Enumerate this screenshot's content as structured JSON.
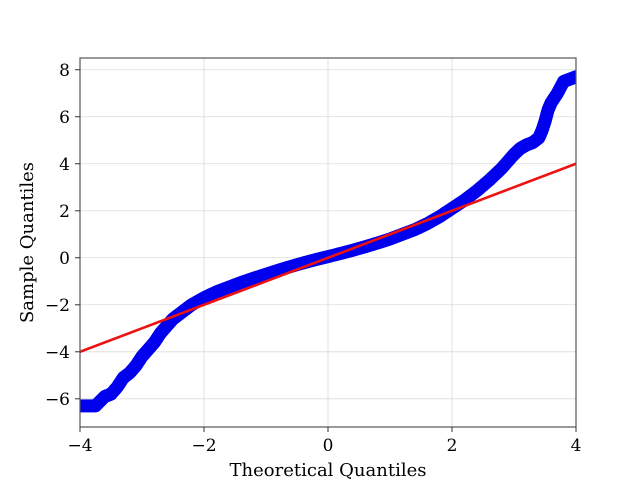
{
  "chart_data": {
    "type": "scatter",
    "xlabel": "Theoretical Quantiles",
    "ylabel": "Sample Quantiles",
    "xlim": [
      -4,
      4
    ],
    "ylim": [
      -7.2,
      8.5
    ],
    "grid": true,
    "x_ticks": [
      -4,
      -2,
      0,
      2,
      4
    ],
    "x_tick_labels": [
      "−4",
      "−2",
      "0",
      "2",
      "4"
    ],
    "y_ticks": [
      -6,
      -4,
      -2,
      0,
      2,
      4,
      6,
      8
    ],
    "y_tick_labels": [
      "−6",
      "−4",
      "−2",
      "0",
      "2",
      "4",
      "6",
      "8"
    ],
    "series": [
      {
        "type": "scatter",
        "color": "#0000ee",
        "x": [
          -4.0,
          -3.75,
          -3.6,
          -3.5,
          -3.4,
          -3.3,
          -3.2,
          -3.1,
          -3.0,
          -2.9,
          -2.8,
          -2.7,
          -2.6,
          -2.5,
          -2.4,
          -2.3,
          -2.2,
          -2.0,
          -1.8,
          -1.6,
          -1.4,
          -1.2,
          -1.0,
          -0.8,
          -0.6,
          -0.4,
          -0.2,
          0.0,
          0.2,
          0.4,
          0.6,
          0.8,
          1.0,
          1.2,
          1.4,
          1.6,
          1.8,
          2.0,
          2.2,
          2.4,
          2.6,
          2.8,
          3.0,
          3.1,
          3.2,
          3.3,
          3.4,
          3.45,
          3.5,
          3.55,
          3.6,
          3.7,
          3.8,
          3.9,
          4.0
        ],
        "y": [
          -6.3,
          -6.3,
          -5.9,
          -5.8,
          -5.5,
          -5.1,
          -4.9,
          -4.6,
          -4.2,
          -3.9,
          -3.6,
          -3.2,
          -2.9,
          -2.6,
          -2.4,
          -2.2,
          -2.0,
          -1.7,
          -1.45,
          -1.25,
          -1.05,
          -0.87,
          -0.7,
          -0.53,
          -0.37,
          -0.22,
          -0.08,
          0.05,
          0.18,
          0.32,
          0.47,
          0.63,
          0.8,
          1.0,
          1.2,
          1.45,
          1.75,
          2.1,
          2.45,
          2.85,
          3.3,
          3.8,
          4.4,
          4.65,
          4.8,
          4.9,
          5.1,
          5.4,
          5.8,
          6.3,
          6.6,
          7.0,
          7.5,
          7.6,
          7.7
        ]
      },
      {
        "type": "line",
        "color": "#ee1111",
        "x": [
          -4,
          4
        ],
        "y": [
          -4,
          4
        ]
      }
    ]
  }
}
